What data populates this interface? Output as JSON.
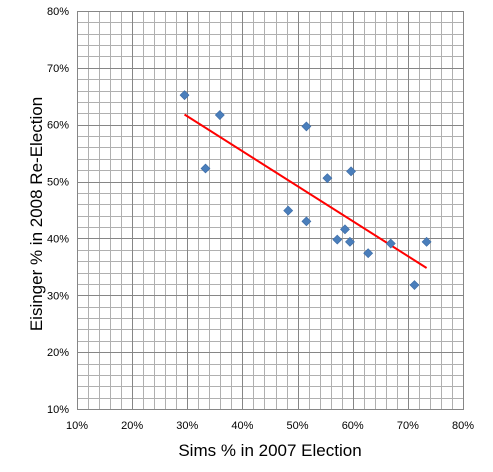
{
  "chart_data": {
    "type": "scatter",
    "title": "",
    "xlabel": "Sims % in 2007 Election",
    "ylabel": "Eisinger % in 2008 Re-Election",
    "xlim": [
      10,
      80
    ],
    "ylim": [
      10,
      80
    ],
    "x_ticks": [
      10,
      20,
      30,
      40,
      50,
      60,
      70,
      80
    ],
    "y_ticks": [
      10,
      20,
      30,
      40,
      50,
      60,
      70,
      80
    ],
    "x_tick_labels": [
      "10%",
      "20%",
      "30%",
      "40%",
      "50%",
      "60%",
      "70%",
      "80%"
    ],
    "y_tick_labels": [
      "10%",
      "20%",
      "30%",
      "40%",
      "50%",
      "60%",
      "70%",
      "80%"
    ],
    "grid": true,
    "grid_minor_step": 2,
    "legend": "none",
    "series": [
      {
        "type": "scatter",
        "marker": "diamond",
        "color": "#4a7ebb",
        "points": [
          {
            "x": 29.5,
            "y": 65.2
          },
          {
            "x": 33.3,
            "y": 52.3
          },
          {
            "x": 35.9,
            "y": 61.7
          },
          {
            "x": 48.3,
            "y": 44.9
          },
          {
            "x": 51.6,
            "y": 43.0
          },
          {
            "x": 51.6,
            "y": 59.7
          },
          {
            "x": 55.4,
            "y": 50.6
          },
          {
            "x": 57.2,
            "y": 39.8
          },
          {
            "x": 58.6,
            "y": 41.6
          },
          {
            "x": 59.5,
            "y": 39.4
          },
          {
            "x": 59.7,
            "y": 51.8
          },
          {
            "x": 62.8,
            "y": 37.4
          },
          {
            "x": 66.9,
            "y": 39.1
          },
          {
            "x": 71.2,
            "y": 31.8
          },
          {
            "x": 73.4,
            "y": 39.4
          }
        ]
      },
      {
        "type": "trendline",
        "color": "#ff0000",
        "points": [
          {
            "x": 29.5,
            "y": 61.8
          },
          {
            "x": 73.4,
            "y": 34.8
          }
        ]
      }
    ]
  }
}
